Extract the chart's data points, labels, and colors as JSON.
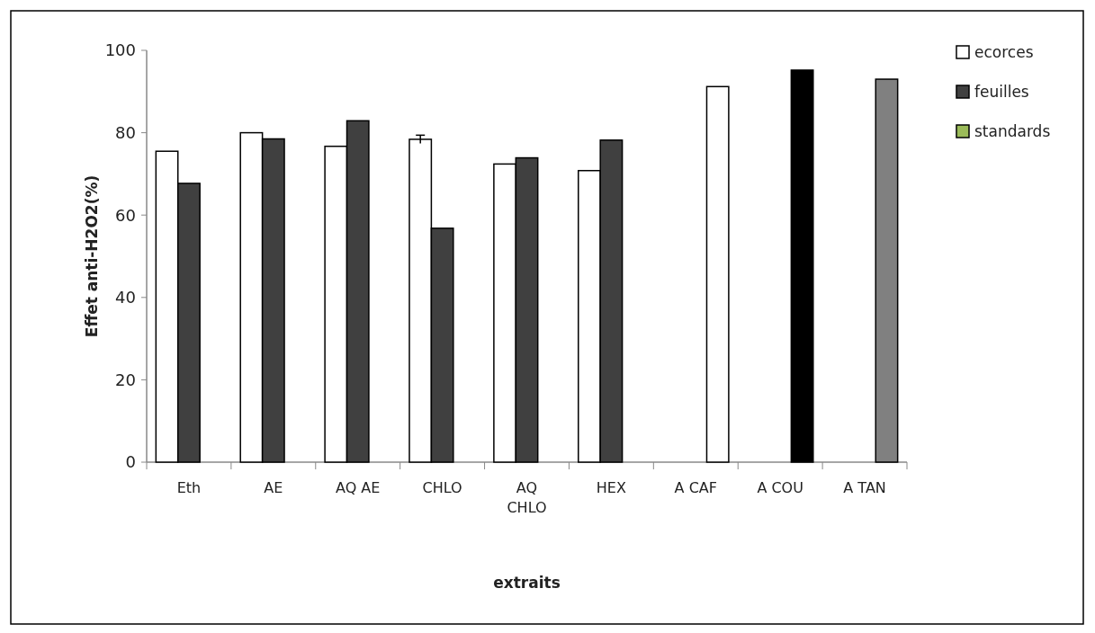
{
  "chart_data": {
    "type": "bar",
    "xlabel": "extraits",
    "ylabel": "Effet anti-H2O2(%)",
    "categories": [
      "Eth",
      "AE",
      "AQ AE",
      "CHLO",
      "AQ CHLO",
      "HEX",
      "A CAF",
      "A COU",
      "A TAN"
    ],
    "series": [
      {
        "name": "ecorces",
        "color": "#ffffff",
        "values": [
          75.5,
          80,
          76.7,
          78.4,
          72.4,
          70.8,
          null,
          null,
          null
        ],
        "errors": [
          null,
          null,
          null,
          1,
          null,
          null,
          null,
          null,
          null
        ]
      },
      {
        "name": "feuilles",
        "color": "#404040",
        "values": [
          67.7,
          78.5,
          82.9,
          56.8,
          73.9,
          78.2,
          null,
          null,
          null
        ]
      },
      {
        "name": "standards",
        "color": "#9bbb59",
        "colors": [
          null,
          null,
          null,
          null,
          null,
          null,
          "#ffffff",
          "#000000",
          "#808080"
        ],
        "values": [
          null,
          null,
          null,
          null,
          null,
          null,
          91.2,
          95.2,
          93
        ]
      }
    ],
    "ylim": [
      0,
      100
    ],
    "yticks": [
      0,
      20,
      40,
      60,
      80,
      100
    ],
    "legend": "top right"
  }
}
